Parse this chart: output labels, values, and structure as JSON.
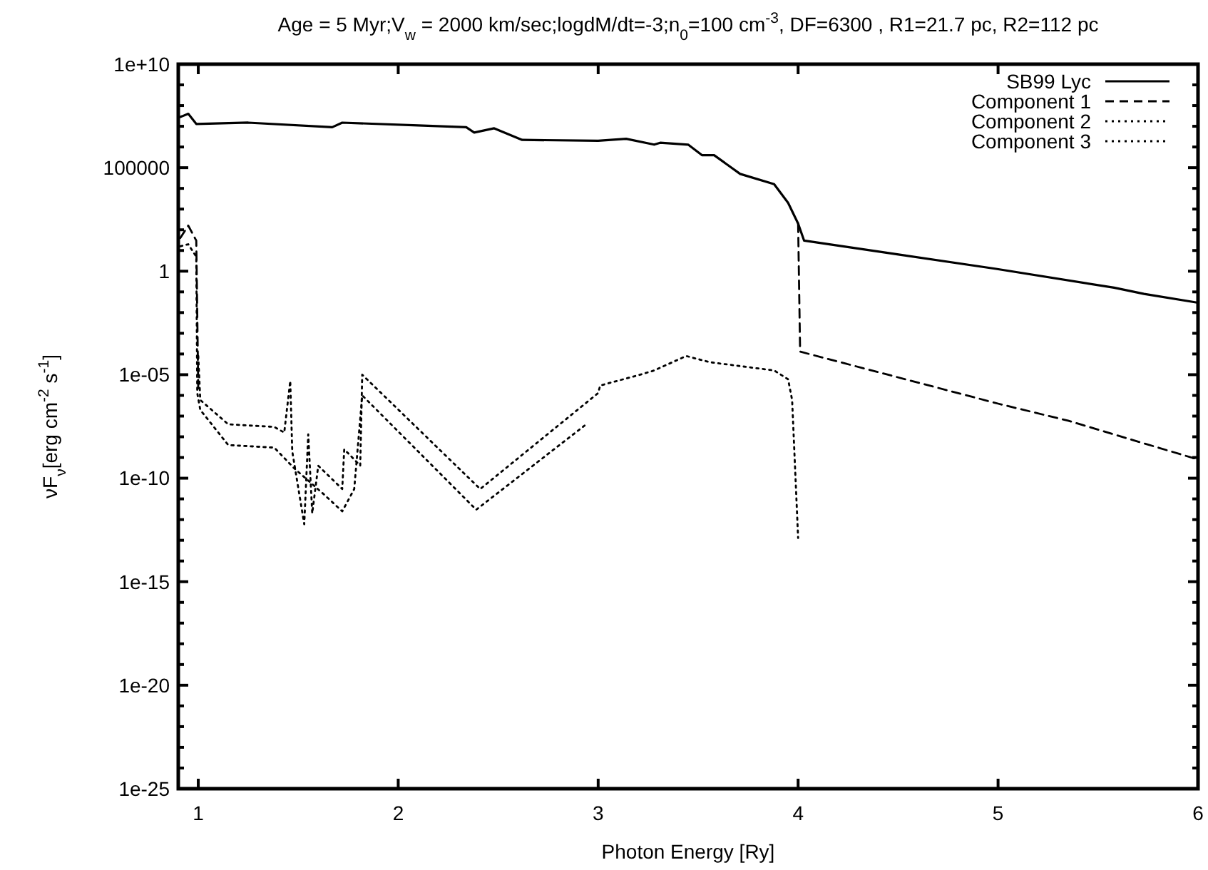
{
  "chart_data": {
    "type": "line",
    "title": "Age = 5 Myr;V$_{w}$ = 2000 km/sec;logdM/dt=-3;n$_{0}$=100 cm$^{-3}$, DF=6300 , R1=21.7  pc, R2=112  pc",
    "xlabel": "Photon Energy [Ry]",
    "ylabel": "νF$_{ν}$[erg cm$^{-2}$ s$^{-1}$]",
    "log": "y",
    "xlim": [
      0.9,
      6
    ],
    "xticks": [
      1,
      2,
      3,
      4,
      5,
      6
    ],
    "ylim": [
      1e-25,
      10000000000.0
    ],
    "yticks": [
      {
        "value": 1e-25,
        "label": "1e-25"
      },
      {
        "value": 1e-24,
        "label": null
      },
      {
        "value": 1e-23,
        "label": null
      },
      {
        "value": 1e-22,
        "label": null
      },
      {
        "value": 1e-21,
        "label": null
      },
      {
        "value": 1e-20,
        "label": "1e-20"
      },
      {
        "value": 1e-19,
        "label": null
      },
      {
        "value": 1e-18,
        "label": null
      },
      {
        "value": 1e-17,
        "label": null
      },
      {
        "value": 1e-16,
        "label": null
      },
      {
        "value": 1e-15,
        "label": "1e-15"
      },
      {
        "value": 1e-14,
        "label": null
      },
      {
        "value": 1e-13,
        "label": null
      },
      {
        "value": 1e-12,
        "label": null
      },
      {
        "value": 1e-11,
        "label": null
      },
      {
        "value": 1e-10,
        "label": "1e-10"
      },
      {
        "value": 1e-09,
        "label": null
      },
      {
        "value": 1e-08,
        "label": null
      },
      {
        "value": 1e-07,
        "label": null
      },
      {
        "value": 1e-06,
        "label": null
      },
      {
        "value": 1e-05,
        "label": "1e-05"
      },
      {
        "value": 0.0001,
        "label": null
      },
      {
        "value": 0.001,
        "label": null
      },
      {
        "value": 0.01,
        "label": null
      },
      {
        "value": 0.1,
        "label": null
      },
      1,
      {
        "value": 10,
        "label": null
      },
      {
        "value": 100,
        "label": null
      },
      {
        "value": 1000,
        "label": null
      },
      {
        "value": 10000,
        "label": null
      },
      100000,
      {
        "value": 1000000.0,
        "label": null
      },
      {
        "value": 10000000.0,
        "label": null
      },
      {
        "value": 100000000.0,
        "label": null
      },
      {
        "value": 1000000000.0,
        "label": null
      },
      {
        "value": 10000000000.0,
        "label": "1e+10"
      }
    ],
    "legend": "top right",
    "grid": false,
    "series": [
      {
        "name": "SB99 Lyc",
        "color": "#000000",
        "line_style": "solid",
        "x": [
          0.91,
          0.95,
          0.99,
          1.25,
          1.67,
          1.72,
          2.1,
          2.34,
          2.38,
          2.48,
          2.62,
          3.0,
          3.14,
          3.28,
          3.31,
          3.45,
          3.52,
          3.58,
          3.71,
          3.88,
          3.95,
          4.0,
          4.03,
          4.52,
          4.99,
          5.58,
          5.73,
          6.0
        ],
        "values": [
          28000000.0,
          40000000.0,
          13000000.0,
          15000000.0,
          9000000.0,
          15000000.0,
          11000000.0,
          9000000.0,
          5000000.0,
          8000000.0,
          2200000.0,
          2000000.0,
          2500000.0,
          1300000.0,
          1600000.0,
          1300000.0,
          400000.0,
          400000.0,
          50000.0,
          16000.0,
          2000.0,
          200,
          30,
          6,
          1.3,
          0.16,
          0.08,
          0.03
        ]
      },
      {
        "name": "Component 1",
        "color": "#000000",
        "line_style": "dashed",
        "x": [
          0.91,
          0.95,
          0.99,
          1.0,
          2.5,
          4.0,
          4.01,
          5.0,
          5.35,
          6.0
        ],
        "values": [
          40,
          160,
          30,
          2e-06,
          null,
          200,
          0.00013,
          4e-07,
          6e-08,
          8e-10
        ]
      },
      {
        "name": "Component 2",
        "color": "#000000",
        "line_style": "dotted",
        "x": [
          1.0,
          1.01,
          1.15,
          1.38,
          1.43,
          1.46,
          1.47,
          1.53,
          1.55,
          1.57,
          1.6,
          1.72,
          1.73,
          1.78,
          1.81,
          1.82,
          2.41,
          3.0,
          3.01,
          3.21,
          3.28,
          3.44,
          3.56,
          3.88,
          3.95,
          3.97,
          4.0
        ],
        "values": [
          8e-05,
          6e-07,
          4e-08,
          3e-08,
          1.6e-08,
          5e-06,
          2e-09,
          6e-13,
          1.3e-08,
          2e-12,
          4e-10,
          3e-11,
          2.5e-09,
          8e-10,
          4e-10,
          1e-05,
          3e-11,
          1.3e-06,
          3e-06,
          1e-05,
          1.6e-05,
          8e-05,
          4e-05,
          1.6e-05,
          6e-06,
          6e-07,
          1.3e-13
        ]
      },
      {
        "name": "Component 3",
        "color": "#000000",
        "line_style": "dotted",
        "x": [
          0.91,
          0.95,
          0.99,
          0.995,
          1.01,
          1.15,
          1.38,
          1.48,
          1.63,
          1.72,
          1.78,
          1.82,
          2.39,
          2.94
        ],
        "values": [
          16,
          20,
          5,
          1.3e-06,
          2e-07,
          4e-09,
          3e-09,
          3e-10,
          1.6e-11,
          2.5e-12,
          3e-11,
          1e-06,
          3e-12,
          4e-08
        ]
      }
    ]
  }
}
